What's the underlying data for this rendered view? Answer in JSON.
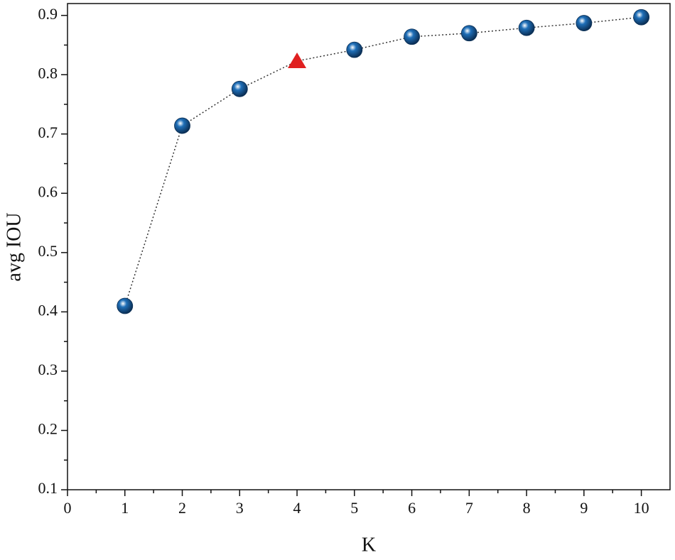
{
  "chart_data": {
    "type": "line",
    "x_label": "K",
    "y_label": "avg IOU",
    "x": [
      1,
      2,
      3,
      4,
      5,
      6,
      7,
      8,
      9,
      10
    ],
    "series": [
      {
        "color": "#1f6fb8",
        "line_color": "#333333",
        "line_style": "dotted",
        "values": [
          0.41,
          0.714,
          0.776,
          0.823,
          0.842,
          0.864,
          0.87,
          0.879,
          0.887,
          0.897
        ],
        "markers": [
          "sphere",
          "sphere",
          "sphere",
          "triangle",
          "sphere",
          "sphere",
          "sphere",
          "sphere",
          "sphere",
          "sphere"
        ],
        "marker_colors": [
          "#1f6fb8",
          "#1f6fb8",
          "#1f6fb8",
          "#e02020",
          "#1f6fb8",
          "#1f6fb8",
          "#1f6fb8",
          "#1f6fb8",
          "#1f6fb8",
          "#1f6fb8"
        ]
      }
    ],
    "xlim": [
      0,
      10.5
    ],
    "xticks": [
      0,
      1,
      2,
      3,
      4,
      5,
      6,
      7,
      8,
      9,
      10
    ],
    "ylim": [
      0.1,
      0.92
    ],
    "yticks": [
      0.1,
      0.2,
      0.3,
      0.4,
      0.5,
      0.6,
      0.7,
      0.8,
      0.9
    ],
    "grid": false
  }
}
